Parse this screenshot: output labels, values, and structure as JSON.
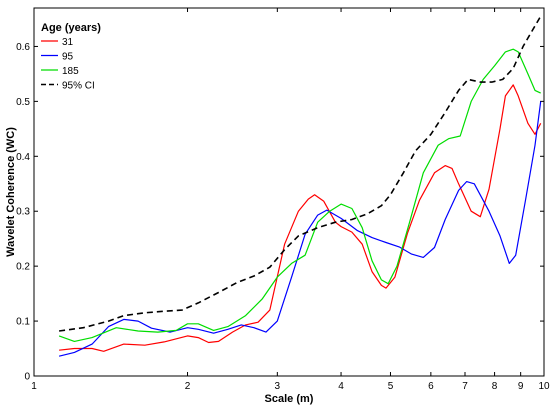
{
  "chart_data": {
    "type": "line",
    "xlabel": "Scale (m)",
    "ylabel": "Wavelet Coherence (WC)",
    "x_scale": "log",
    "xlim": [
      1,
      10
    ],
    "ylim": [
      0,
      0.67
    ],
    "x_ticks": [
      1,
      2,
      3,
      4,
      5,
      6,
      7,
      8,
      9,
      10
    ],
    "y_ticks": [
      0,
      0.1,
      0.2,
      0.3,
      0.4,
      0.5,
      0.6
    ],
    "grid": false,
    "legend": {
      "title": "Age (years)",
      "position": "top-left"
    },
    "series": [
      {
        "name": "31",
        "color": "#ff0000",
        "dash": "solid",
        "points": [
          [
            1.12,
            0.047
          ],
          [
            1.2,
            0.05
          ],
          [
            1.3,
            0.05
          ],
          [
            1.37,
            0.045
          ],
          [
            1.5,
            0.058
          ],
          [
            1.65,
            0.056
          ],
          [
            1.8,
            0.062
          ],
          [
            2.0,
            0.073
          ],
          [
            2.1,
            0.07
          ],
          [
            2.2,
            0.061
          ],
          [
            2.3,
            0.063
          ],
          [
            2.45,
            0.08
          ],
          [
            2.6,
            0.093
          ],
          [
            2.75,
            0.098
          ],
          [
            2.9,
            0.12
          ],
          [
            3.1,
            0.24
          ],
          [
            3.3,
            0.3
          ],
          [
            3.45,
            0.322
          ],
          [
            3.55,
            0.33
          ],
          [
            3.7,
            0.318
          ],
          [
            3.9,
            0.28
          ],
          [
            4.0,
            0.272
          ],
          [
            4.2,
            0.262
          ],
          [
            4.4,
            0.24
          ],
          [
            4.6,
            0.19
          ],
          [
            4.8,
            0.165
          ],
          [
            4.9,
            0.16
          ],
          [
            5.1,
            0.18
          ],
          [
            5.4,
            0.26
          ],
          [
            5.7,
            0.32
          ],
          [
            6.1,
            0.37
          ],
          [
            6.4,
            0.383
          ],
          [
            6.6,
            0.378
          ],
          [
            6.8,
            0.35
          ],
          [
            7.2,
            0.3
          ],
          [
            7.5,
            0.29
          ],
          [
            7.8,
            0.34
          ],
          [
            8.2,
            0.45
          ],
          [
            8.4,
            0.51
          ],
          [
            8.7,
            0.53
          ],
          [
            8.9,
            0.51
          ],
          [
            9.3,
            0.46
          ],
          [
            9.6,
            0.44
          ],
          [
            9.85,
            0.46
          ]
        ]
      },
      {
        "name": "95",
        "color": "#0000ff",
        "dash": "solid",
        "points": [
          [
            1.12,
            0.036
          ],
          [
            1.2,
            0.043
          ],
          [
            1.3,
            0.058
          ],
          [
            1.4,
            0.09
          ],
          [
            1.5,
            0.103
          ],
          [
            1.6,
            0.1
          ],
          [
            1.7,
            0.087
          ],
          [
            1.85,
            0.08
          ],
          [
            2.0,
            0.088
          ],
          [
            2.1,
            0.085
          ],
          [
            2.25,
            0.078
          ],
          [
            2.4,
            0.085
          ],
          [
            2.55,
            0.093
          ],
          [
            2.7,
            0.088
          ],
          [
            2.85,
            0.08
          ],
          [
            3.0,
            0.1
          ],
          [
            3.2,
            0.18
          ],
          [
            3.4,
            0.258
          ],
          [
            3.6,
            0.293
          ],
          [
            3.75,
            0.302
          ],
          [
            4.0,
            0.287
          ],
          [
            4.3,
            0.265
          ],
          [
            4.6,
            0.252
          ],
          [
            4.9,
            0.243
          ],
          [
            5.2,
            0.235
          ],
          [
            5.5,
            0.222
          ],
          [
            5.8,
            0.216
          ],
          [
            6.1,
            0.234
          ],
          [
            6.4,
            0.285
          ],
          [
            6.8,
            0.338
          ],
          [
            7.05,
            0.354
          ],
          [
            7.3,
            0.35
          ],
          [
            7.8,
            0.3
          ],
          [
            8.2,
            0.255
          ],
          [
            8.55,
            0.205
          ],
          [
            8.8,
            0.22
          ],
          [
            9.2,
            0.32
          ],
          [
            9.6,
            0.42
          ],
          [
            9.85,
            0.5
          ]
        ]
      },
      {
        "name": "185",
        "color": "#00dd00",
        "dash": "solid",
        "points": [
          [
            1.12,
            0.073
          ],
          [
            1.2,
            0.063
          ],
          [
            1.3,
            0.07
          ],
          [
            1.45,
            0.088
          ],
          [
            1.6,
            0.082
          ],
          [
            1.75,
            0.08
          ],
          [
            1.9,
            0.083
          ],
          [
            2.0,
            0.095
          ],
          [
            2.1,
            0.095
          ],
          [
            2.25,
            0.083
          ],
          [
            2.4,
            0.09
          ],
          [
            2.6,
            0.11
          ],
          [
            2.8,
            0.14
          ],
          [
            3.0,
            0.18
          ],
          [
            3.2,
            0.205
          ],
          [
            3.4,
            0.22
          ],
          [
            3.6,
            0.28
          ],
          [
            3.8,
            0.3
          ],
          [
            4.0,
            0.313
          ],
          [
            4.2,
            0.305
          ],
          [
            4.4,
            0.27
          ],
          [
            4.6,
            0.21
          ],
          [
            4.8,
            0.175
          ],
          [
            4.95,
            0.168
          ],
          [
            5.15,
            0.2
          ],
          [
            5.45,
            0.28
          ],
          [
            5.8,
            0.37
          ],
          [
            6.2,
            0.42
          ],
          [
            6.5,
            0.432
          ],
          [
            6.85,
            0.437
          ],
          [
            7.2,
            0.5
          ],
          [
            7.6,
            0.54
          ],
          [
            8.0,
            0.565
          ],
          [
            8.4,
            0.59
          ],
          [
            8.7,
            0.595
          ],
          [
            8.9,
            0.59
          ],
          [
            9.3,
            0.55
          ],
          [
            9.6,
            0.52
          ],
          [
            9.85,
            0.515
          ]
        ]
      },
      {
        "name": "95% CI",
        "color": "#000000",
        "dash": "dashed",
        "points": [
          [
            1.12,
            0.082
          ],
          [
            1.25,
            0.088
          ],
          [
            1.4,
            0.1
          ],
          [
            1.5,
            0.11
          ],
          [
            1.65,
            0.115
          ],
          [
            1.8,
            0.118
          ],
          [
            1.95,
            0.12
          ],
          [
            2.1,
            0.133
          ],
          [
            2.3,
            0.152
          ],
          [
            2.5,
            0.17
          ],
          [
            2.7,
            0.182
          ],
          [
            2.9,
            0.198
          ],
          [
            3.1,
            0.23
          ],
          [
            3.3,
            0.255
          ],
          [
            3.6,
            0.27
          ],
          [
            3.9,
            0.28
          ],
          [
            4.2,
            0.285
          ],
          [
            4.5,
            0.295
          ],
          [
            4.8,
            0.31
          ],
          [
            5.0,
            0.33
          ],
          [
            5.3,
            0.37
          ],
          [
            5.6,
            0.41
          ],
          [
            6.0,
            0.44
          ],
          [
            6.4,
            0.48
          ],
          [
            6.8,
            0.52
          ],
          [
            7.1,
            0.54
          ],
          [
            7.5,
            0.535
          ],
          [
            7.9,
            0.535
          ],
          [
            8.3,
            0.54
          ],
          [
            8.7,
            0.56
          ],
          [
            9.1,
            0.6
          ],
          [
            9.5,
            0.63
          ],
          [
            9.85,
            0.655
          ]
        ]
      }
    ]
  }
}
